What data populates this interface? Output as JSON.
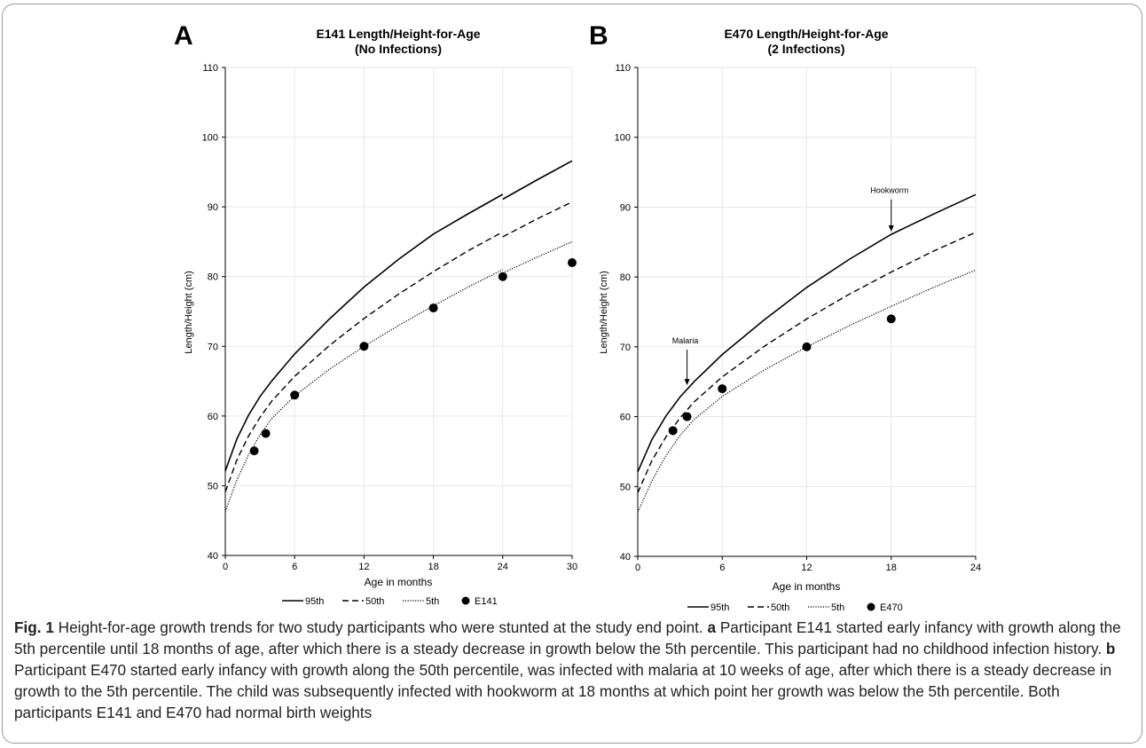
{
  "figure": {
    "caption": {
      "fig_label": "Fig. 1",
      "lead": " Height-for-age growth trends for two study participants who were stunted at the study end point. ",
      "a_letter": "a",
      "a_text": " Participant E141 started early infancy with growth along the 5th percentile until 18 months of age, after which there is a steady decrease in growth below the 5th percentile. This participant had no childhood infection history. ",
      "b_letter": "b",
      "b_text": " Participant E470 started early infancy with growth along the 50th percentile, was infected with malaria at 10 weeks of age, after which there is a steady decrease in growth to the 5th percentile. The child was subsequently infected with hookworm at 18 months at which point her growth was below the 5th percentile. Both participants E141 and E470 had normal birth weights"
    }
  },
  "chart_data": [
    {
      "type": "line",
      "panel": "A",
      "title": "E141 Length/Height-for-Age",
      "subtitle": "(No Infections)",
      "xlabel": "Age in months",
      "ylabel": "Length/Height (cm)",
      "xlim": [
        0,
        30
      ],
      "ylim": [
        40,
        110
      ],
      "xticks": [
        0,
        6,
        12,
        18,
        24,
        30
      ],
      "yticks": [
        40,
        50,
        60,
        70,
        80,
        90,
        100,
        110
      ],
      "grid": true,
      "legend_position": "bottom",
      "series": [
        {
          "name": "95th",
          "style": "solid",
          "x": [
            0,
            1,
            2,
            3,
            4,
            6,
            9,
            12,
            15,
            18,
            21,
            24,
            24,
            27,
            30
          ],
          "y": [
            52.1,
            56.7,
            60.1,
            62.8,
            65.0,
            68.9,
            73.9,
            78.5,
            82.5,
            86.1,
            89.0,
            91.8,
            91.1,
            93.9,
            96.6
          ]
        },
        {
          "name": "50th",
          "style": "dashed",
          "x": [
            0,
            1,
            2,
            3,
            4,
            6,
            9,
            12,
            15,
            18,
            21,
            24,
            24,
            27,
            30
          ],
          "y": [
            49.1,
            53.7,
            57.1,
            59.8,
            62.1,
            65.7,
            70.1,
            74.0,
            77.5,
            80.7,
            83.7,
            86.4,
            85.7,
            88.3,
            90.7
          ]
        },
        {
          "name": "5th",
          "style": "dotted",
          "x": [
            0,
            1,
            2,
            3,
            4,
            6,
            9,
            12,
            15,
            18,
            21,
            24,
            24,
            27,
            30
          ],
          "y": [
            46.3,
            50.8,
            54.4,
            57.3,
            59.6,
            62.9,
            66.7,
            70.0,
            73.0,
            75.8,
            78.5,
            81.0,
            80.5,
            82.8,
            85.0
          ]
        },
        {
          "name": "E141",
          "style": "markers",
          "x": [
            2.5,
            3.5,
            6,
            12,
            18,
            24,
            30
          ],
          "y": [
            55,
            57.5,
            63,
            70,
            75.5,
            80,
            82
          ]
        }
      ],
      "annotations": []
    },
    {
      "type": "line",
      "panel": "B",
      "title": "E470 Length/Height-for-Age",
      "subtitle": "(2 Infections)",
      "xlabel": "Age in months",
      "ylabel": "Length/Height (cm)",
      "xlim": [
        0,
        24
      ],
      "ylim": [
        40,
        110
      ],
      "xticks": [
        0,
        6,
        12,
        18,
        24
      ],
      "yticks": [
        40,
        50,
        60,
        70,
        80,
        90,
        100,
        110
      ],
      "grid": true,
      "legend_position": "bottom",
      "series": [
        {
          "name": "95th",
          "style": "solid",
          "x": [
            0,
            1,
            2,
            3,
            4,
            6,
            9,
            12,
            15,
            18,
            21,
            24
          ],
          "y": [
            52.1,
            56.7,
            60.1,
            62.8,
            65.0,
            68.9,
            73.9,
            78.5,
            82.5,
            86.1,
            89.0,
            91.8
          ]
        },
        {
          "name": "50th",
          "style": "dashed",
          "x": [
            0,
            1,
            2,
            3,
            4,
            6,
            9,
            12,
            15,
            18,
            21,
            24
          ],
          "y": [
            49.1,
            53.7,
            57.1,
            59.8,
            62.1,
            65.7,
            70.1,
            74.0,
            77.5,
            80.7,
            83.7,
            86.4
          ]
        },
        {
          "name": "5th",
          "style": "dotted",
          "x": [
            0,
            1,
            2,
            3,
            4,
            6,
            9,
            12,
            15,
            18,
            21,
            24
          ],
          "y": [
            46.3,
            50.8,
            54.4,
            57.3,
            59.6,
            62.9,
            66.7,
            70.0,
            73.0,
            75.8,
            78.5,
            81.0
          ]
        },
        {
          "name": "E470",
          "style": "markers",
          "x": [
            2.5,
            3.5,
            6,
            12,
            18
          ],
          "y": [
            58,
            60,
            64,
            70,
            74
          ]
        }
      ],
      "annotations": [
        {
          "text": "Malaria",
          "x": 3.5,
          "y": 64.5,
          "label_y": 70.5
        },
        {
          "text": "Hookworm",
          "x": 18,
          "y": 86.5,
          "label_y": 92
        }
      ]
    }
  ]
}
